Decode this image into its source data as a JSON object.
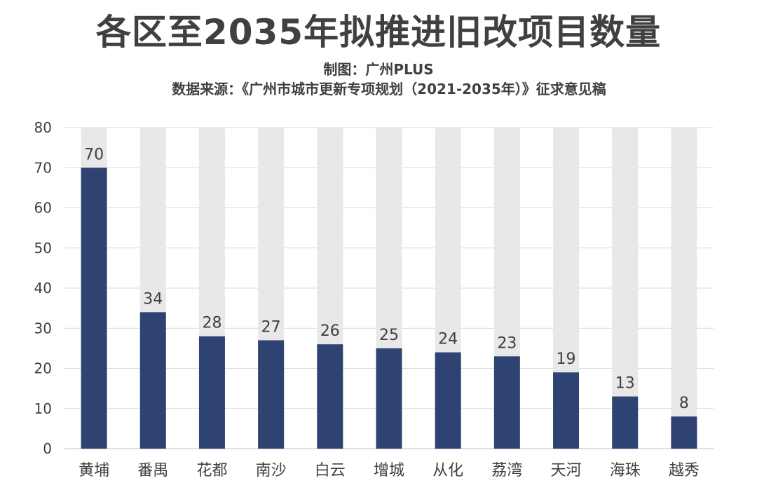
{
  "header": {
    "title": "各区至2035年拟推进旧改项目数量",
    "maker": "制图：广州PLUS",
    "source": "数据来源：《广州市城市更新专项规划（2021-2035年）》征求意见稿"
  },
  "chart_data": {
    "type": "bar",
    "categories": [
      "黄埔",
      "番禺",
      "花都",
      "南沙",
      "白云",
      "增城",
      "从化",
      "荔湾",
      "天河",
      "海珠",
      "越秀"
    ],
    "values": [
      70,
      34,
      28,
      27,
      26,
      25,
      24,
      23,
      19,
      13,
      8
    ],
    "ylim": [
      0,
      80
    ],
    "yticks": [
      0,
      10,
      20,
      30,
      40,
      50,
      60,
      70,
      80
    ],
    "grid": true,
    "legend": "none",
    "data_labels": true,
    "colors": {
      "bar": "#2e4371",
      "background_bar": "#e8e8e8",
      "grid": "#d9d9d9",
      "text": "#404040"
    }
  }
}
